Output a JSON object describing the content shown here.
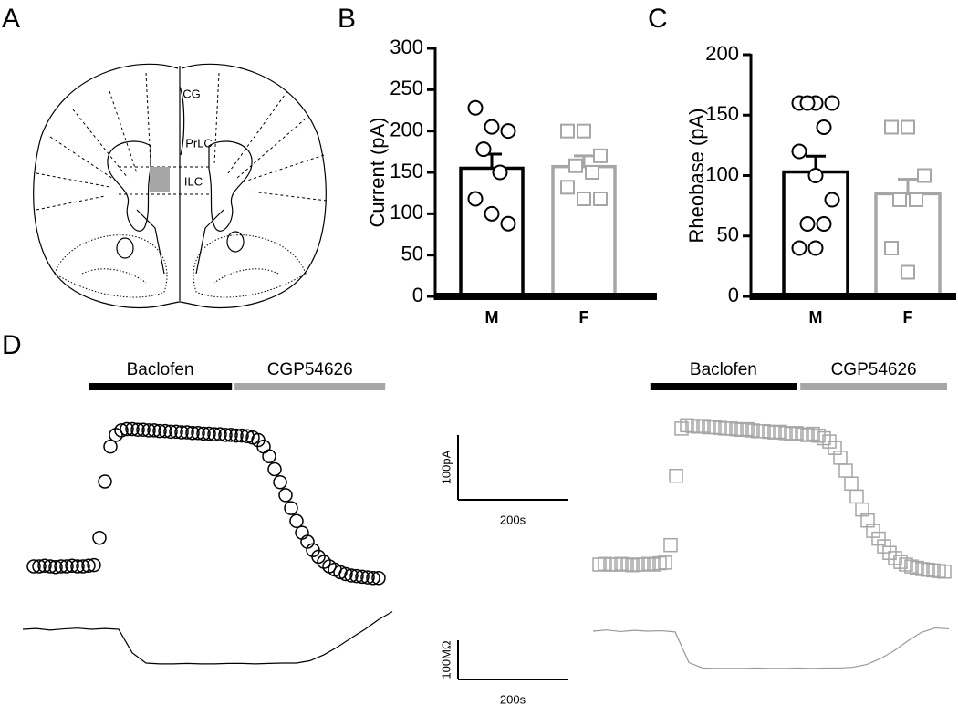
{
  "panel_labels": [
    "A",
    "B",
    "C",
    "D"
  ],
  "diagram": {
    "labels": [
      "CG",
      "PrLC",
      "ILC"
    ]
  },
  "chart_data": [
    {
      "type": "bar",
      "ylabel": "Current (pA)",
      "categories": [
        "M",
        "F"
      ],
      "values": [
        155,
        157
      ],
      "errors": [
        17,
        13
      ],
      "colors": [
        "#000000",
        "#a6a6a6"
      ],
      "markers": [
        "circle",
        "square"
      ],
      "points": [
        [
          228,
          205,
          200,
          178,
          150,
          118,
          100,
          88
        ],
        [
          200,
          200,
          170,
          158,
          150,
          132,
          118,
          118
        ]
      ],
      "ylim": [
        0,
        300
      ],
      "yticks": [
        0,
        50,
        100,
        150,
        200,
        250,
        300
      ]
    },
    {
      "type": "bar",
      "ylabel": "Rheobase  (pA)",
      "categories": [
        "M",
        "F"
      ],
      "values": [
        103,
        85
      ],
      "errors": [
        13,
        12
      ],
      "colors": [
        "#000000",
        "#a6a6a6"
      ],
      "markers": [
        "circle",
        "square"
      ],
      "points": [
        [
          160,
          160,
          160,
          160,
          140,
          120,
          100,
          80,
          60,
          60,
          40,
          40
        ],
        [
          140,
          140,
          100,
          80,
          80,
          40,
          20
        ]
      ],
      "ylim": [
        0,
        200
      ],
      "yticks": [
        0,
        50,
        100,
        150,
        200
      ]
    },
    {
      "type": "timecourse",
      "scale_bars": [
        {
          "x": 200,
          "x_label": "200s",
          "y": 100,
          "y_label": "100pA"
        },
        {
          "x": 200,
          "x_label": "200s",
          "y": 100,
          "y_label": "100MΩ"
        }
      ],
      "groups": [
        {
          "marker": "circle",
          "color": "#000000",
          "trace_color": "#000000",
          "treatments": [
            {
              "name": "Baclofen",
              "start": 100,
              "end": 362,
              "color": "#000000"
            },
            {
              "name": "CGP54626",
              "start": 367,
              "end": 642,
              "color": "#a6a6a6"
            }
          ],
          "current": {
            "x": [
              0,
              10,
              20,
              30,
              40,
              50,
              60,
              70,
              80,
              90,
              100,
              110,
              120,
              130,
              140,
              150,
              160,
              170,
              180,
              190,
              200,
              210,
              220,
              230,
              240,
              250,
              260,
              270,
              280,
              290,
              300,
              310,
              320,
              330,
              340,
              350,
              360,
              370,
              380,
              390,
              400,
              410,
              420,
              430,
              440,
              450,
              460,
              470,
              480,
              490,
              500,
              510,
              520,
              530,
              540,
              550,
              560,
              570,
              580,
              590,
              600,
              610,
              620,
              630
            ],
            "values": [
              0,
              0,
              1,
              0,
              -1,
              0,
              0,
              1,
              0,
              0,
              1,
              2,
              44,
              131,
              185,
              203,
              210,
              212,
              212,
              211,
              211,
              210,
              210,
              209,
              209,
              208,
              208,
              207,
              207,
              206,
              206,
              205,
              205,
              204,
              204,
              203,
              203,
              202,
              202,
              201,
              199,
              195,
              185,
              170,
              150,
              130,
              110,
              90,
              70,
              52,
              38,
              25,
              15,
              7,
              0,
              -5,
              -9,
              -12,
              -14,
              -15,
              -16,
              -17,
              -18,
              -18
            ]
          },
          "resistance": {
            "x": [
              0,
              25,
              50,
              75,
              100,
              125,
              150,
              175,
              200,
              225,
              250,
              275,
              300,
              325,
              350,
              375,
              400,
              425,
              450,
              475,
              500,
              525,
              550,
              575,
              600,
              625,
              650,
              675
            ],
            "values": [
              0,
              2,
              -2,
              1,
              3,
              0,
              2,
              0,
              -60,
              -86,
              -88,
              -88,
              -87,
              -88,
              -88,
              -87,
              -87,
              -88,
              -87,
              -86,
              -86,
              -80,
              -65,
              -45,
              -22,
              0,
              25,
              45
            ]
          }
        },
        {
          "marker": "square",
          "color": "#a6a6a6",
          "trace_color": "#999999",
          "treatments": [
            {
              "name": "Baclofen",
              "start": 93,
              "end": 360,
              "color": "#000000"
            },
            {
              "name": "CGP54626",
              "start": 367,
              "end": 635,
              "color": "#a6a6a6"
            }
          ],
          "current": {
            "x": [
              0,
              10,
              20,
              30,
              40,
              50,
              60,
              70,
              80,
              90,
              100,
              110,
              120,
              130,
              140,
              150,
              160,
              170,
              180,
              190,
              200,
              210,
              220,
              230,
              240,
              250,
              260,
              270,
              280,
              290,
              300,
              310,
              320,
              330,
              340,
              350,
              360,
              370,
              380,
              390,
              400,
              410,
              420,
              430,
              440,
              450,
              460,
              470,
              480,
              490,
              500,
              510,
              520,
              530,
              540,
              550,
              560,
              570,
              580,
              590,
              600,
              610,
              620,
              630
            ],
            "values": [
              0,
              1,
              0,
              0,
              1,
              0,
              -1,
              0,
              0,
              1,
              0,
              2,
              3,
              30,
              137,
              210,
              215,
              214,
              213,
              214,
              212,
              212,
              211,
              210,
              210,
              209,
              208,
              209,
              207,
              206,
              206,
              205,
              204,
              205,
              203,
              202,
              203,
              201,
              200,
              202,
              199,
              195,
              190,
              180,
              165,
              145,
              125,
              105,
              85,
              68,
              52,
              40,
              28,
              18,
              10,
              4,
              0,
              -3,
              -5,
              -7,
              -8,
              -9,
              -10,
              -11
            ]
          },
          "resistance": {
            "x": [
              0,
              25,
              50,
              75,
              100,
              125,
              150,
              175,
              200,
              225,
              250,
              275,
              300,
              325,
              350,
              375,
              400,
              425,
              450,
              475,
              500,
              525,
              550,
              575,
              600,
              625,
              650
            ],
            "values": [
              0,
              3,
              -1,
              2,
              0,
              1,
              -2,
              -80,
              -94,
              -95,
              -95,
              -95,
              -94,
              -95,
              -95,
              -94,
              -95,
              -94,
              -94,
              -92,
              -85,
              -70,
              -50,
              -25,
              -3,
              8,
              6
            ]
          }
        }
      ]
    }
  ]
}
